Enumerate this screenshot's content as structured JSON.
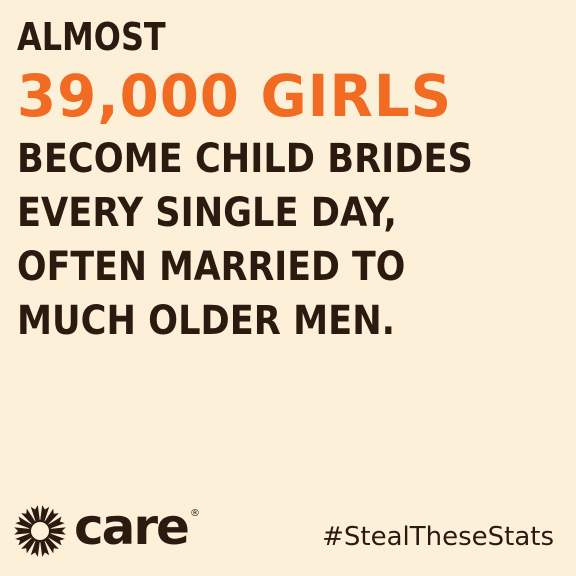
{
  "headline": {
    "line1": "ALMOST",
    "line2": "39,000 GIRLS",
    "line3": "BECOME CHILD BRIDES",
    "line4": "EVERY SINGLE DAY,",
    "line5": "OFTEN MARRIED TO",
    "line6": "MUCH OLDER MEN."
  },
  "logo": {
    "word": "care",
    "registered": "®",
    "icon": "care-sunburst-icon"
  },
  "hashtag": "#StealTheseStats",
  "colors": {
    "background": "#fdf0d8",
    "text": "#2c1a10",
    "accent": "#f26b22"
  }
}
